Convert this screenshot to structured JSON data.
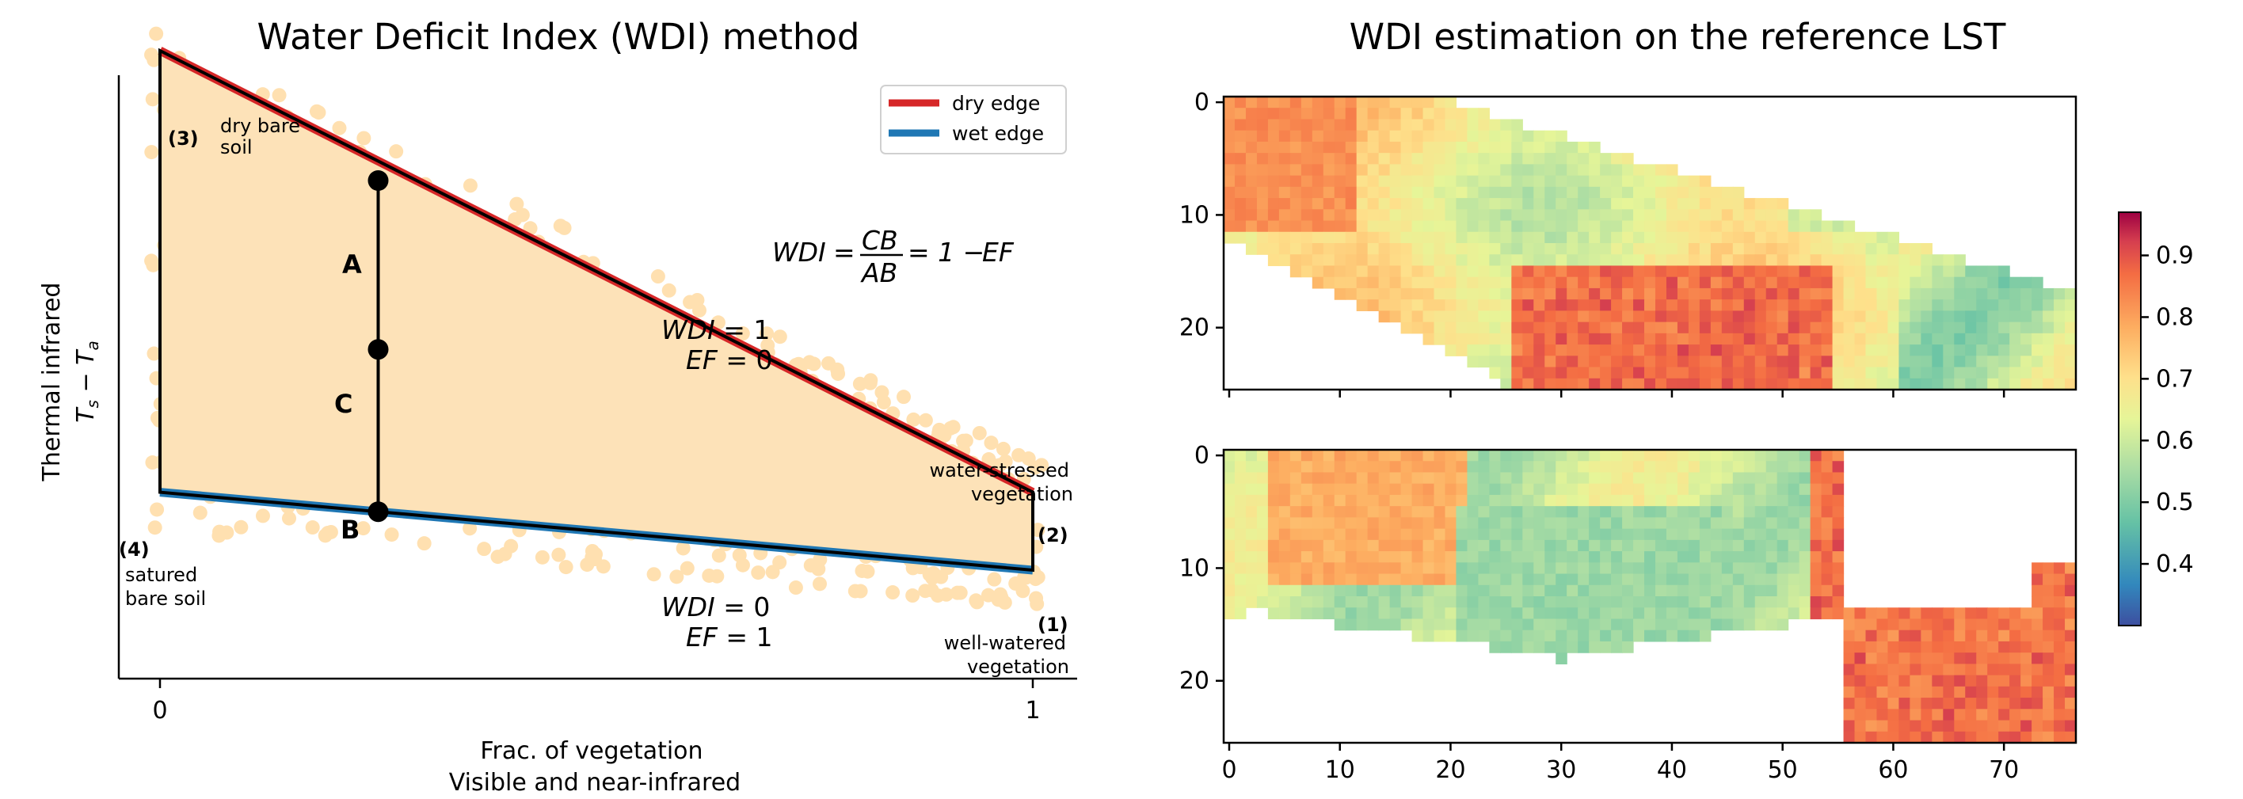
{
  "chart_data": [
    {
      "type": "scatter",
      "title": "Water Deficit Index (WDI) method",
      "xlabel": "Frac. of vegetation",
      "xlabel2": "Visible and near-infrared",
      "ylabel": "Thermal infrared",
      "ylabel2": "T_s − T_a",
      "xticks": [
        "0",
        "1"
      ],
      "xlim": [
        -0.05,
        1.05
      ],
      "legend": {
        "position": "top-right",
        "entries": [
          {
            "name": "dry edge",
            "color": "#d62728"
          },
          {
            "name": "wet edge",
            "color": "#1f77b4"
          }
        ]
      },
      "colors": {
        "scatter": "#ffe0b0",
        "fill": "#fde2b8",
        "dry_edge": "#d62728",
        "wet_edge": "#1f77b4",
        "outline": "#000000"
      },
      "trapezoid": {
        "vertices": [
          {
            "x": 1,
            "y": 0.15,
            "label": "(1)",
            "text": "well-watered\nvegetation"
          },
          {
            "x": 1,
            "y": 0.27,
            "label": "(2)",
            "text": "water-stressed\nvegetation"
          },
          {
            "x": 0,
            "y": 0.95,
            "label": "(3)",
            "text": "dry bare\nsoil"
          },
          {
            "x": 0,
            "y": 0.27,
            "label": "(4)",
            "text": "satured\nbare soil"
          }
        ]
      },
      "points": [
        {
          "name": "A",
          "x": 0.25,
          "y": 0.75
        },
        {
          "name": "C",
          "x": 0.25,
          "y": 0.49
        },
        {
          "name": "B",
          "x": 0.25,
          "y": 0.24
        }
      ],
      "annotations": {
        "equation": "WDI = CB/AB = 1 − EF",
        "dry_line_1": "WDI = 1",
        "dry_line_2": "EF = 0",
        "wet_line_1": "WDI = 0",
        "wet_line_2": "EF = 1"
      }
    },
    {
      "type": "heatmap",
      "title": "WDI estimation on the reference LST",
      "panels": 2,
      "xticks": [
        "0",
        "10",
        "20",
        "30",
        "40",
        "50",
        "60",
        "70"
      ],
      "yticks": [
        "0",
        "10",
        "20"
      ],
      "xlim": [
        0,
        77
      ],
      "ylim": [
        0,
        26
      ],
      "colormap": "Spectral_r",
      "colorbar": {
        "ticks": [
          "0.4",
          "0.5",
          "0.6",
          "0.7",
          "0.8",
          "0.9"
        ],
        "range": [
          0.3,
          0.97
        ]
      }
    }
  ]
}
